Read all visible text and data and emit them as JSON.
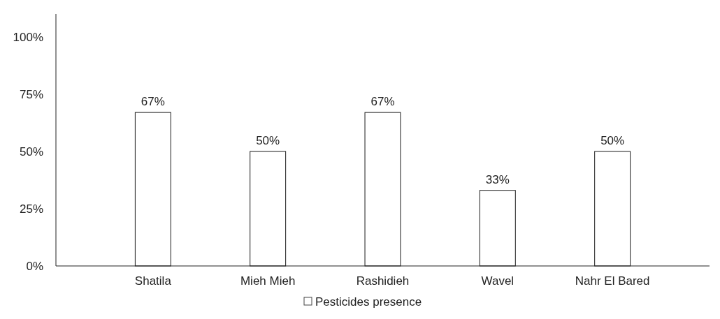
{
  "chart_data": {
    "type": "bar",
    "categories": [
      "Shatila",
      "Mieh Mieh",
      "Rashidieh",
      "Wavel",
      "Nahr El Bared"
    ],
    "series": [
      {
        "name": "Pesticides presence",
        "color": "#ffffff",
        "values": [
          67,
          50,
          67,
          33,
          50
        ],
        "value_labels": [
          "67%",
          "50%",
          "67%",
          "33%",
          "50%"
        ]
      }
    ],
    "ylim": [
      0,
      110
    ],
    "yticks": [
      {
        "value": 0,
        "label": "0%"
      },
      {
        "value": 25,
        "label": "25%"
      },
      {
        "value": 50,
        "label": "50%"
      },
      {
        "value": 75,
        "label": "75%"
      },
      {
        "value": 100,
        "label": "100%"
      }
    ],
    "grid": false,
    "legend": "bottom"
  }
}
